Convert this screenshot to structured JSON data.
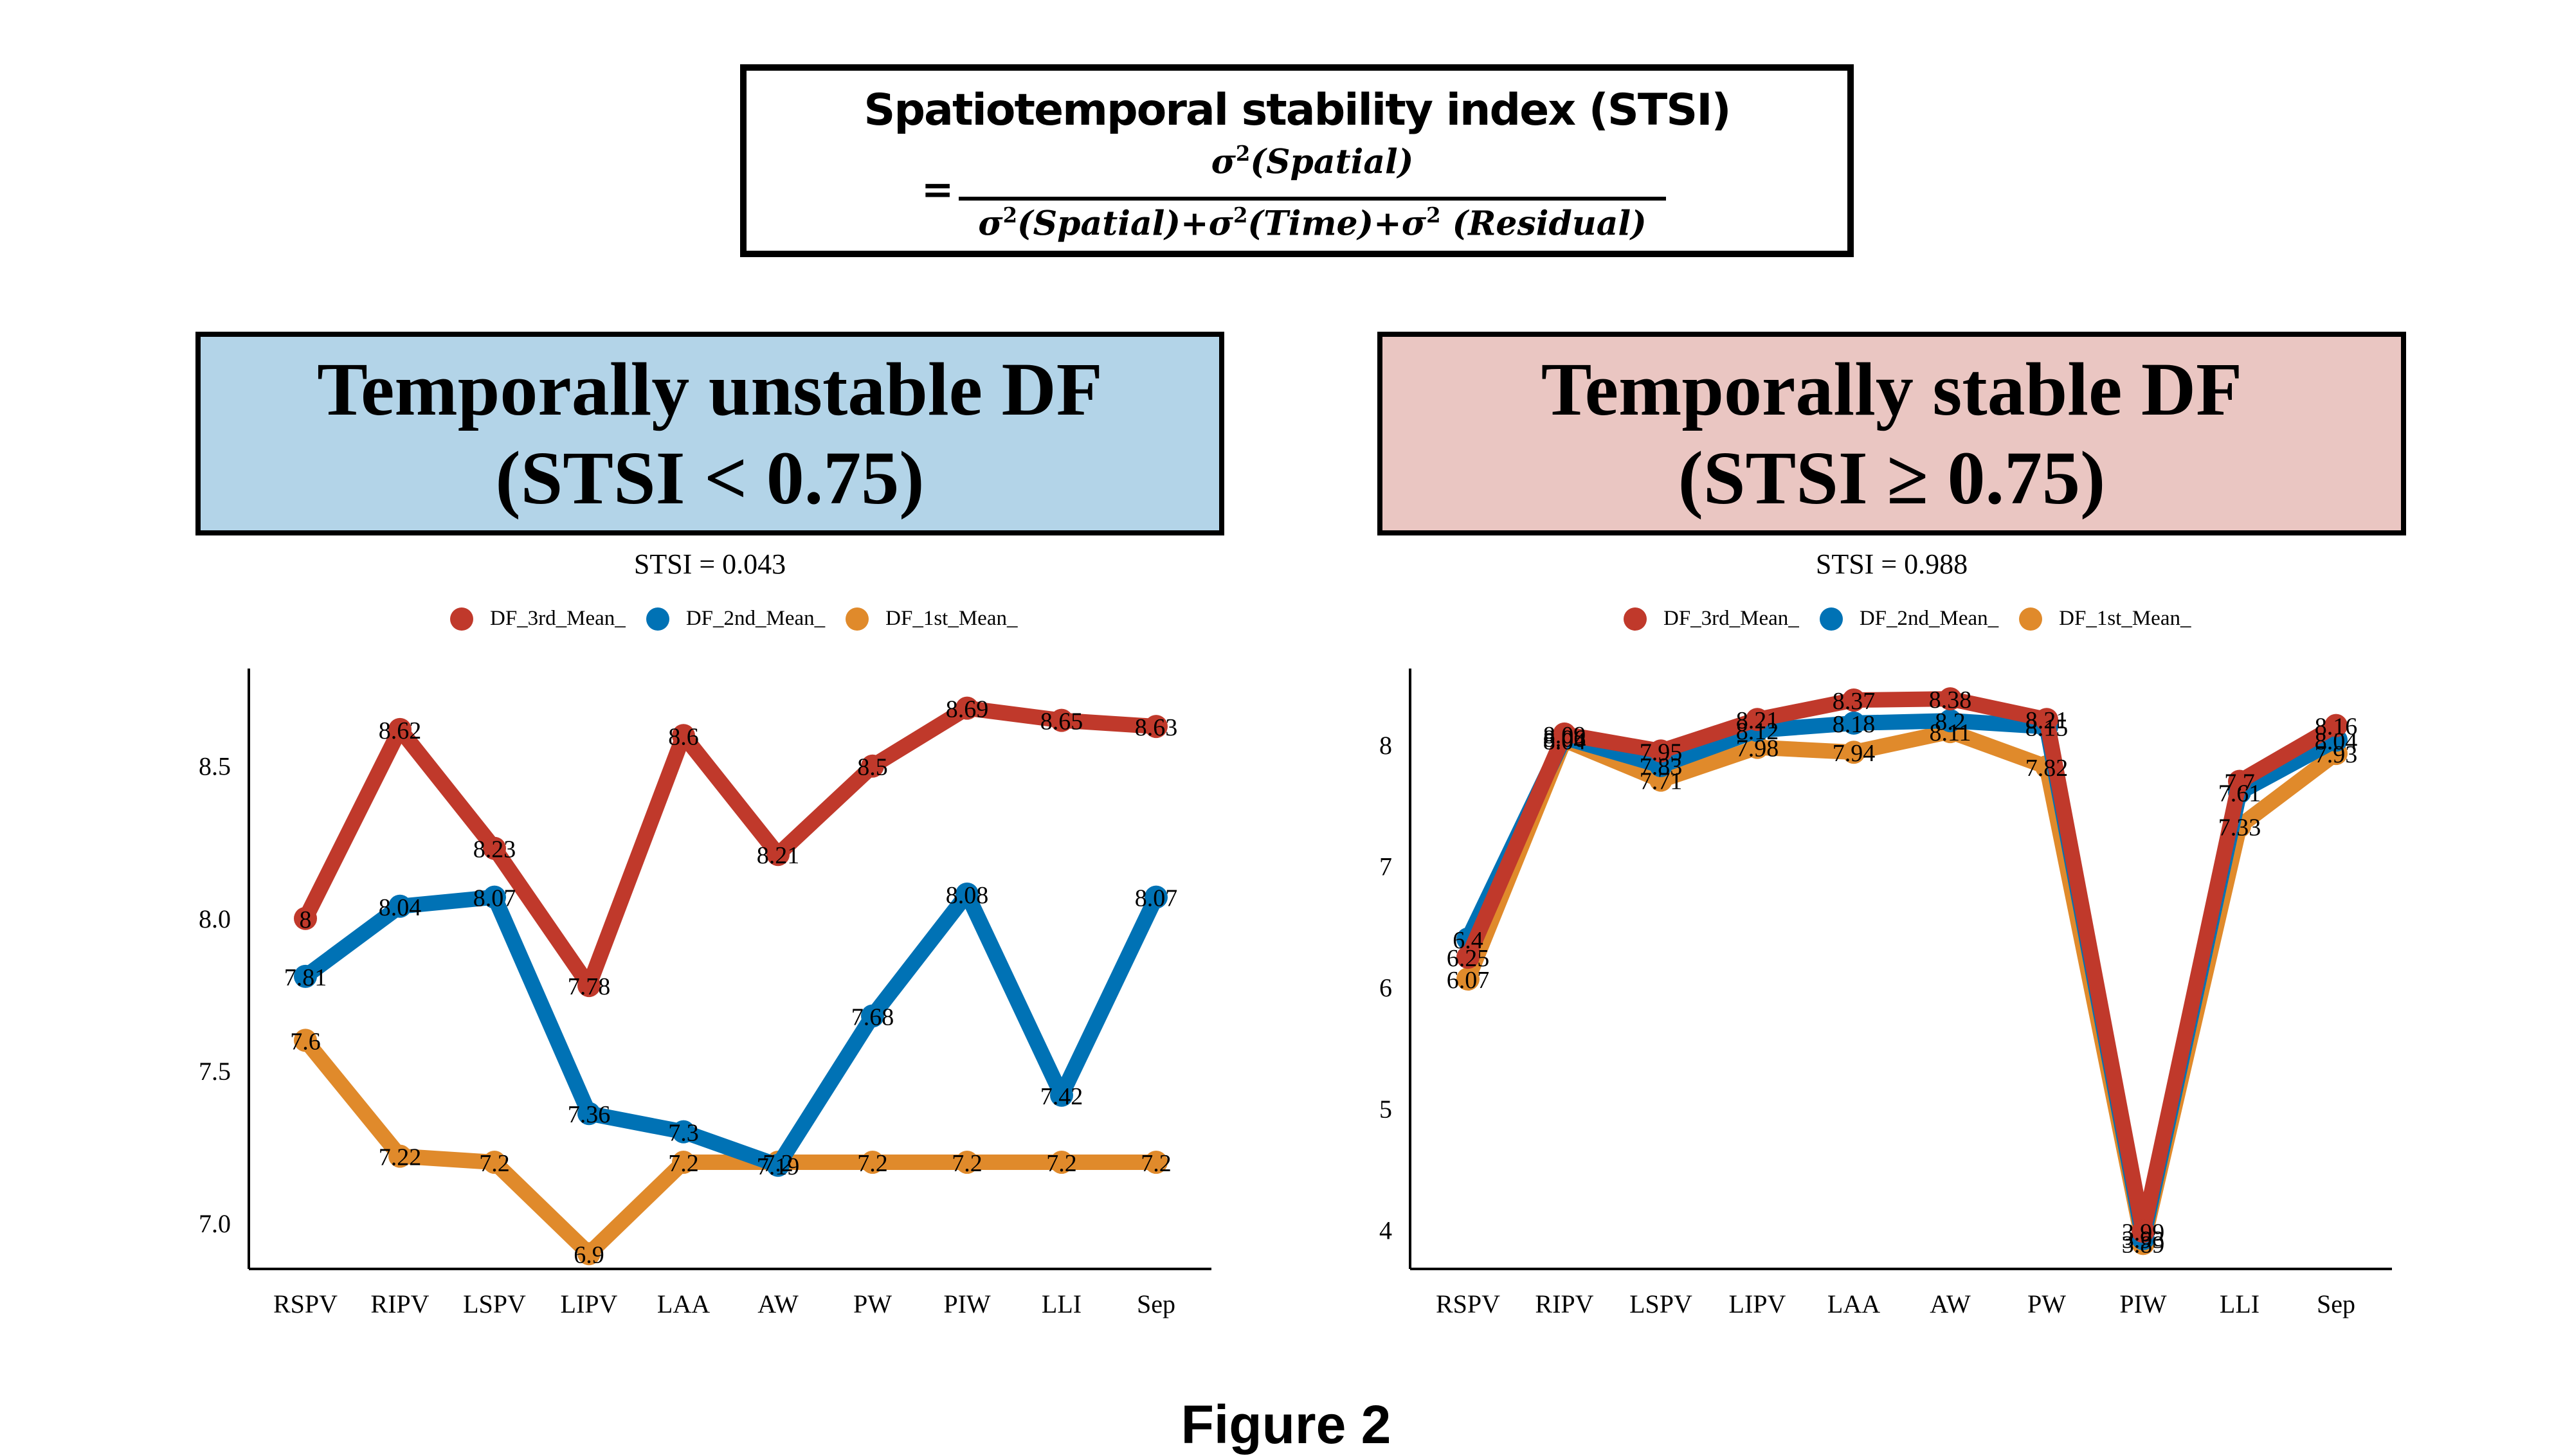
{
  "formula": {
    "title": "Spatiotemporal stability index (STSI)",
    "equals": "=",
    "numerator": "σ²(Spatial)",
    "denominator": "σ²(Spatial)+σ²(Time)+σ² (Residual)"
  },
  "panels": {
    "left": {
      "header_line1": "Temporally unstable DF",
      "header_line2": "(STSI < 0.75)",
      "header_color": "#b3d4e8",
      "stsi_label": "STSI = 0.043"
    },
    "right": {
      "header_line1": "Temporally stable DF",
      "header_line2": "(STSI ≥ 0.75)",
      "header_color": "#eac6c2",
      "stsi_label": "STSI = 0.988"
    }
  },
  "legend": [
    {
      "name": "DF_3rd_Mean_",
      "color": "#c0392b"
    },
    {
      "name": "DF_2nd_Mean_",
      "color": "#0072b5"
    },
    {
      "name": "DF_1st_Mean_",
      "color": "#e08a2b"
    }
  ],
  "chart_data": [
    {
      "type": "line",
      "title": "STSI = 0.043",
      "xlabel": "",
      "ylabel": "",
      "categories": [
        "RSPV",
        "RIPV",
        "LSPV",
        "LIPV",
        "LAA",
        "AW",
        "PW",
        "PIW",
        "LLI",
        "Sep"
      ],
      "yticks": [
        "7.0",
        "7.5",
        "8.0",
        "8.5"
      ],
      "ytick_values": [
        7.0,
        7.5,
        8.0,
        8.5
      ],
      "ylim": [
        6.85,
        8.82
      ],
      "grid": false,
      "legend_position": "top",
      "series": [
        {
          "name": "DF_3rd_Mean_",
          "color": "#c0392b",
          "values": [
            8,
            8.62,
            8.23,
            7.78,
            8.6,
            8.21,
            8.5,
            8.69,
            8.65,
            8.63
          ]
        },
        {
          "name": "DF_2nd_Mean_",
          "color": "#0072b5",
          "values": [
            7.81,
            8.04,
            8.07,
            7.36,
            7.3,
            7.19,
            7.68,
            8.08,
            7.42,
            8.07
          ]
        },
        {
          "name": "DF_1st_Mean_",
          "color": "#e08a2b",
          "values": [
            7.6,
            7.22,
            7.2,
            6.9,
            7.2,
            7.2,
            7.2,
            7.2,
            7.2,
            7.2
          ]
        }
      ]
    },
    {
      "type": "line",
      "title": "STSI = 0.988",
      "xlabel": "",
      "ylabel": "",
      "categories": [
        "RSPV",
        "RIPV",
        "LSPV",
        "LIPV",
        "LAA",
        "AW",
        "PW",
        "PIW",
        "LLI",
        "Sep"
      ],
      "yticks": [
        "4",
        "5",
        "6",
        "7",
        "8"
      ],
      "ytick_values": [
        4,
        5,
        6,
        7,
        8
      ],
      "ylim": [
        3.68,
        8.63
      ],
      "grid": false,
      "legend_position": "top",
      "series": [
        {
          "name": "DF_3rd_Mean_",
          "color": "#c0392b",
          "values": [
            6.25,
            8.09,
            7.95,
            8.21,
            8.37,
            8.38,
            8.21,
            3.99,
            7.7,
            8.16
          ]
        },
        {
          "name": "DF_2nd_Mean_",
          "color": "#0072b5",
          "values": [
            6.4,
            8.06,
            7.83,
            8.12,
            8.18,
            8.2,
            8.15,
            3.93,
            7.61,
            8.04
          ]
        },
        {
          "name": "DF_1st_Mean_",
          "color": "#e08a2b",
          "values": [
            6.07,
            8.04,
            7.71,
            7.98,
            7.94,
            8.11,
            7.82,
            3.89,
            7.33,
            7.93
          ]
        }
      ]
    }
  ],
  "caption": "Figure 2"
}
